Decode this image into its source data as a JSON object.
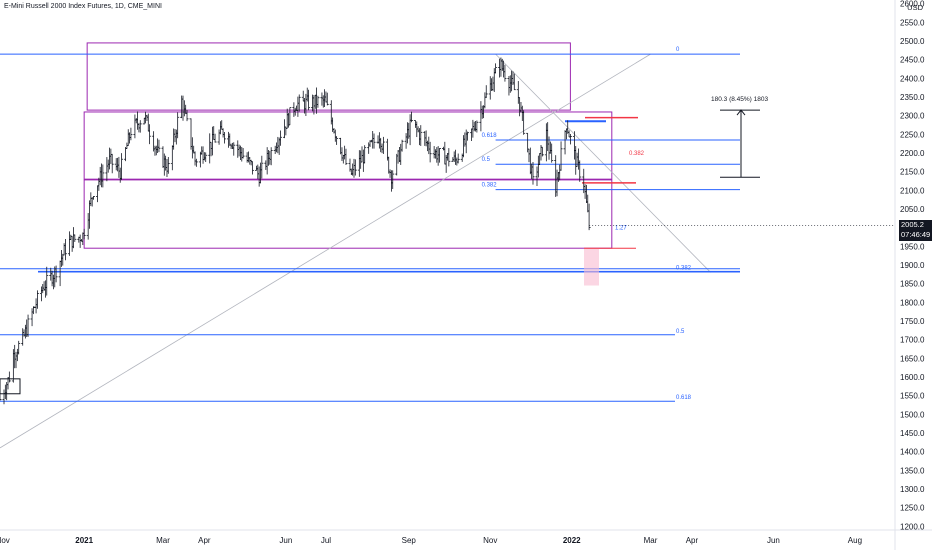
{
  "header": {
    "title": "E-Mini Russell 2000 Index Futures, 1D, CME_MINI",
    "currency": "USD"
  },
  "last_price": {
    "value": "2005.2",
    "countdown": "07:46:49"
  },
  "colors": {
    "candle": "#131722",
    "fib_blue": "#2962ff",
    "range_purple": "#9c27b0",
    "trend_gray": "#b2b5be",
    "red": "#f23645",
    "pink_fill": "#f8bbd0"
  },
  "chart_data": {
    "type": "ohlc",
    "title": "E-Mini Russell 2000 Index Futures, 1D, CME_MINI",
    "y_axis": {
      "unit": "USD",
      "range": [
        1190,
        2610
      ],
      "ticks": [
        2600,
        2550,
        2500,
        2450,
        2400,
        2350,
        2300,
        2250,
        2200,
        2150,
        2100,
        2050,
        2000,
        1950,
        1900,
        1850,
        1800,
        1750,
        1700,
        1650,
        1600,
        1550,
        1500,
        1450,
        1400,
        1350,
        1300,
        1250,
        1200
      ],
      "tick_labels": [
        "2600.0",
        "2550.0",
        "2500.0",
        "2450.0",
        "2400.0",
        "2350.0",
        "2300.0",
        "2250.0",
        "2200.0",
        "2150.0",
        "2100.0",
        "2050.0",
        "2000.0",
        "1950.0",
        "1900.0",
        "1850.0",
        "1800.0",
        "1750.0",
        "1700.0",
        "1650.0",
        "1600.0",
        "1550.0",
        "1500.0",
        "1450.0",
        "1400.0",
        "1350.0",
        "1300.0",
        "1250.0",
        "1200.0"
      ]
    },
    "x_axis": {
      "range": [
        "2020-10-30",
        "2022-08-31"
      ],
      "ticks": [
        {
          "date": "2020-11-01",
          "label": "Nov"
        },
        {
          "date": "2021-01-01",
          "label": "2021"
        },
        {
          "date": "2021-03-01",
          "label": "Mar"
        },
        {
          "date": "2021-04-01",
          "label": "Apr"
        },
        {
          "date": "2021-06-01",
          "label": "Jun"
        },
        {
          "date": "2021-07-01",
          "label": "Jul"
        },
        {
          "date": "2021-09-01",
          "label": "Sep"
        },
        {
          "date": "2021-11-01",
          "label": "Nov"
        },
        {
          "date": "2022-01-01",
          "label": "2022"
        },
        {
          "date": "2022-03-01",
          "label": "Mar"
        },
        {
          "date": "2022-04-01",
          "label": "Apr"
        },
        {
          "date": "2022-06-01",
          "label": "Jun"
        },
        {
          "date": "2022-08-01",
          "label": "Aug"
        }
      ]
    },
    "price_path": [
      [
        "2020-10-30",
        1540
      ],
      [
        "2020-11-06",
        1600
      ],
      [
        "2020-11-09",
        1660
      ],
      [
        "2020-11-16",
        1700
      ],
      [
        "2020-11-24",
        1780
      ],
      [
        "2020-12-01",
        1840
      ],
      [
        "2020-12-10",
        1880
      ],
      [
        "2020-12-20",
        1960
      ],
      [
        "2020-12-31",
        1980
      ],
      [
        "2021-01-08",
        2100
      ],
      [
        "2021-01-20",
        2180
      ],
      [
        "2021-01-28",
        2150
      ],
      [
        "2021-02-05",
        2260
      ],
      [
        "2021-02-15",
        2300
      ],
      [
        "2021-02-25",
        2200
      ],
      [
        "2021-03-05",
        2160
      ],
      [
        "2021-03-15",
        2340
      ],
      [
        "2021-03-25",
        2180
      ],
      [
        "2021-04-15",
        2260
      ],
      [
        "2021-05-12",
        2140
      ],
      [
        "2021-06-08",
        2330
      ],
      [
        "2021-06-30",
        2340
      ],
      [
        "2021-07-19",
        2140
      ],
      [
        "2021-08-10",
        2250
      ],
      [
        "2021-08-19",
        2140
      ],
      [
        "2021-09-03",
        2280
      ],
      [
        "2021-09-20",
        2200
      ],
      [
        "2021-10-06",
        2180
      ],
      [
        "2021-10-20",
        2270
      ],
      [
        "2021-11-01",
        2380
      ],
      [
        "2021-11-08",
        2440
      ],
      [
        "2021-11-22",
        2350
      ],
      [
        "2021-11-30",
        2190
      ],
      [
        "2021-12-03",
        2120
      ],
      [
        "2021-12-13",
        2250
      ],
      [
        "2021-12-20",
        2110
      ],
      [
        "2021-12-28",
        2280
      ],
      [
        "2022-01-04",
        2180
      ],
      [
        "2022-01-10",
        2120
      ],
      [
        "2022-01-14",
        2005
      ]
    ],
    "annotations": {
      "fib_upper": [
        {
          "label": "0",
          "price": 2465
        },
        {
          "label": "0.618",
          "price": 2235
        },
        {
          "label": "0.5",
          "price": 2170
        },
        {
          "label": "0.382",
          "price": 2102
        },
        {
          "label": "1.27",
          "price": 2000
        }
      ],
      "fib_lower": [
        {
          "label": "0.382",
          "price": 1882
        },
        {
          "label": "0.5",
          "price": 1713
        },
        {
          "label": "0.618",
          "price": 1535
        }
      ],
      "inner_fib_label": "0.382",
      "measure_label": "180.3 (8.45%) 1803",
      "measure_range": [
        2135,
        2315
      ],
      "ranges": [
        {
          "from": "2021-01-01",
          "to": "2021-12-31",
          "top": 2495,
          "bottom": 2315
        },
        {
          "from": "2021-01-01",
          "to": "2022-01-31",
          "top": 2310,
          "bottom": 2130
        },
        {
          "from": "2021-01-01",
          "to": "2022-01-31",
          "top": 2128,
          "bottom": 1945
        }
      ]
    }
  }
}
